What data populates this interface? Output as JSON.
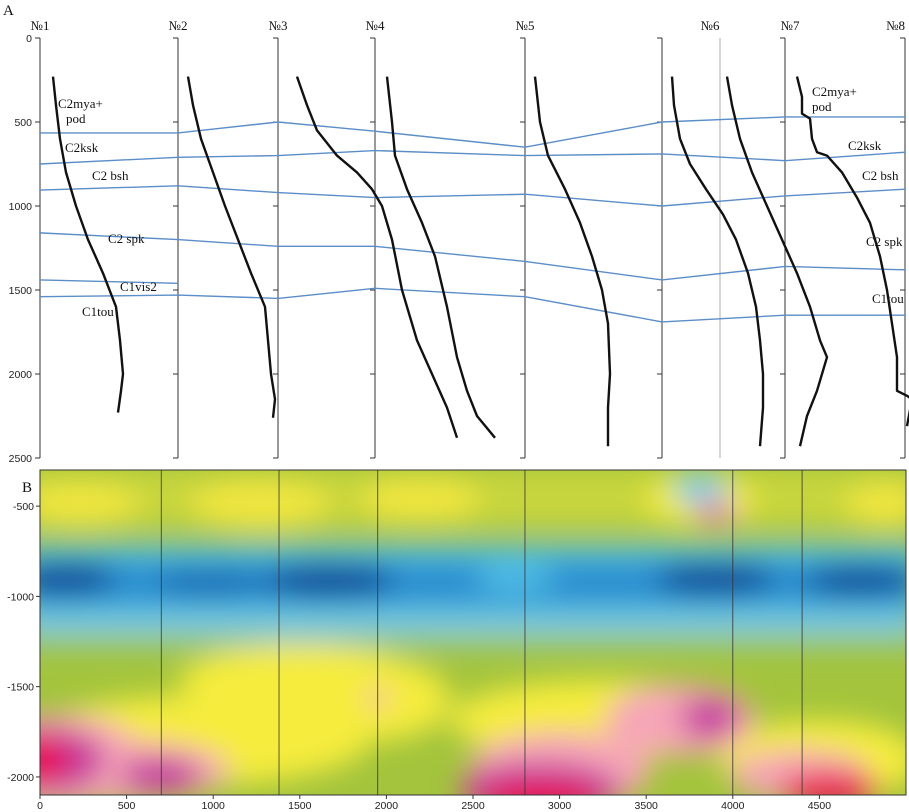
{
  "panel_labels": {
    "a": "A",
    "b": "B"
  },
  "chart_data": [
    {
      "type": "line",
      "panel": "A",
      "title": "",
      "xlabel": "",
      "ylabel": "",
      "ylim": [
        0,
        2500
      ],
      "y_ticks": [
        0,
        500,
        1000,
        1500,
        2000,
        2500
      ],
      "wells": [
        "№1",
        "№2",
        "№3",
        "№4",
        "№5",
        "№6",
        "№7",
        "№8"
      ],
      "log_curves": [
        {
          "name": "№1",
          "points": [
            [
              0.05,
              230
            ],
            [
              0.08,
              400
            ],
            [
              0.12,
              600
            ],
            [
              0.18,
              800
            ],
            [
              0.28,
              1000
            ],
            [
              0.4,
              1200
            ],
            [
              0.55,
              1400
            ],
            [
              0.68,
              1600
            ],
            [
              0.72,
              1800
            ],
            [
              0.75,
              2000
            ],
            [
              0.73,
              2100
            ],
            [
              0.7,
              2230
            ]
          ]
        },
        {
          "name": "№2",
          "points": [
            [
              0.05,
              230
            ],
            [
              0.1,
              400
            ],
            [
              0.18,
              600
            ],
            [
              0.3,
              800
            ],
            [
              0.42,
              1000
            ],
            [
              0.55,
              1200
            ],
            [
              0.68,
              1400
            ],
            [
              0.82,
              1600
            ],
            [
              0.85,
              1800
            ],
            [
              0.88,
              2000
            ],
            [
              0.92,
              2150
            ],
            [
              0.9,
              2260
            ]
          ]
        },
        {
          "name": "№3",
          "points": [
            [
              0.1,
              230
            ],
            [
              0.2,
              400
            ],
            [
              0.3,
              550
            ],
            [
              0.5,
              700
            ],
            [
              0.7,
              800
            ],
            [
              0.85,
              900
            ],
            [
              0.95,
              1000
            ],
            [
              1.05,
              1200
            ],
            [
              1.15,
              1500
            ],
            [
              1.3,
              1800
            ],
            [
              1.45,
              2000
            ],
            [
              1.6,
              2200
            ],
            [
              1.7,
              2380
            ]
          ]
        },
        {
          "name": "№4",
          "points": [
            [
              0.1,
              230
            ],
            [
              0.15,
              500
            ],
            [
              0.18,
              700
            ],
            [
              0.3,
              900
            ],
            [
              0.45,
              1100
            ],
            [
              0.58,
              1300
            ],
            [
              0.7,
              1600
            ],
            [
              0.8,
              1900
            ],
            [
              0.9,
              2100
            ],
            [
              1.0,
              2250
            ],
            [
              1.18,
              2380
            ]
          ]
        },
        {
          "name": "№5",
          "points": [
            [
              0.05,
              230
            ],
            [
              0.1,
              500
            ],
            [
              0.18,
              700
            ],
            [
              0.35,
              900
            ],
            [
              0.5,
              1100
            ],
            [
              0.62,
              1300
            ],
            [
              0.72,
              1500
            ],
            [
              0.78,
              1700
            ],
            [
              0.8,
              2000
            ],
            [
              0.78,
              2200
            ],
            [
              0.78,
              2430
            ]
          ]
        },
        {
          "name": "№6-a",
          "points": [
            [
              0.04,
              230
            ],
            [
              0.06,
              400
            ],
            [
              0.12,
              600
            ],
            [
              0.22,
              750
            ],
            [
              0.38,
              900
            ],
            [
              0.55,
              1050
            ],
            [
              0.68,
              1200
            ],
            [
              0.8,
              1400
            ],
            [
              0.88,
              1600
            ],
            [
              0.92,
              1800
            ],
            [
              0.95,
              2000
            ],
            [
              0.95,
              2200
            ],
            [
              0.92,
              2430
            ]
          ]
        },
        {
          "name": "№6-b",
          "points": [
            [
              0.05,
              230
            ],
            [
              0.1,
              400
            ],
            [
              0.18,
              600
            ],
            [
              0.3,
              800
            ],
            [
              0.45,
              1000
            ],
            [
              0.6,
              1200
            ],
            [
              0.75,
              1400
            ],
            [
              0.88,
              1600
            ],
            [
              0.98,
              1800
            ],
            [
              1.05,
              1900
            ],
            [
              0.95,
              2100
            ],
            [
              0.85,
              2250
            ],
            [
              0.78,
              2430
            ]
          ]
        },
        {
          "name": "№7",
          "points": [
            [
              0.05,
              230
            ],
            [
              0.1,
              350
            ],
            [
              0.1,
              450
            ],
            [
              0.18,
              480
            ],
            [
              0.2,
              600
            ],
            [
              0.25,
              680
            ],
            [
              0.35,
              700
            ],
            [
              0.5,
              800
            ],
            [
              0.65,
              950
            ],
            [
              0.78,
              1100
            ],
            [
              0.88,
              1300
            ],
            [
              0.95,
              1500
            ],
            [
              1.0,
              1700
            ],
            [
              1.05,
              1900
            ],
            [
              1.05,
              2100
            ],
            [
              1.15,
              2130
            ],
            [
              1.2,
              2150
            ],
            [
              1.15,
              2310
            ]
          ]
        }
      ],
      "horizons": [
        {
          "name": "C2mya+ pod",
          "label_lines": [
            "C2mya+",
            "pod"
          ],
          "depths": [
            565,
            565,
            500,
            555,
            650,
            500,
            470,
            470
          ]
        },
        {
          "name": "C2ksk",
          "label_lines": [
            "C2ksk"
          ],
          "depths": [
            750,
            710,
            700,
            670,
            700,
            690,
            730,
            680
          ]
        },
        {
          "name": "C2 bsh",
          "label_lines": [
            "C2 bsh"
          ],
          "depths": [
            905,
            880,
            920,
            950,
            930,
            1000,
            940,
            900
          ]
        },
        {
          "name": "C2 spk",
          "label_lines": [
            "C2 spk"
          ],
          "depths": [
            1160,
            1200,
            1240,
            1240,
            1330,
            1440,
            1360,
            1380
          ]
        },
        {
          "name": "C1vis2",
          "label_lines": [
            "C1vis2"
          ],
          "depths": [
            1440,
            1460
          ]
        },
        {
          "name": "C1tou",
          "label_lines": [
            "C1tou"
          ],
          "depths": [
            1540,
            1530,
            1550,
            1490,
            1540,
            1690,
            1650,
            1650
          ]
        }
      ],
      "horizon_color": "#5b8ec8",
      "curve_color": "#111111"
    },
    {
      "type": "heatmap",
      "panel": "B",
      "title": "",
      "xlabel": "",
      "ylabel": "",
      "xlim": [
        0,
        5000
      ],
      "ylim": [
        -2100,
        -300
      ],
      "x_ticks": [
        0,
        500,
        1000,
        1500,
        2000,
        2500,
        3000,
        3500,
        4000,
        4500
      ],
      "y_ticks": [
        -500,
        -1000,
        -1500,
        -2000
      ],
      "well_x": [
        700,
        1380,
        1950,
        2800,
        4000,
        4400
      ],
      "colors": {
        "deep_blue": "#0a4e97",
        "blue": "#2a8fcf",
        "cyan": "#52c3e8",
        "green": "#9fc23a",
        "yellow_green": "#c8d63c",
        "yellow": "#f5ec3d",
        "pink": "#f6a5b8",
        "magenta": "#c43a9f",
        "red": "#e8114e"
      }
    }
  ]
}
